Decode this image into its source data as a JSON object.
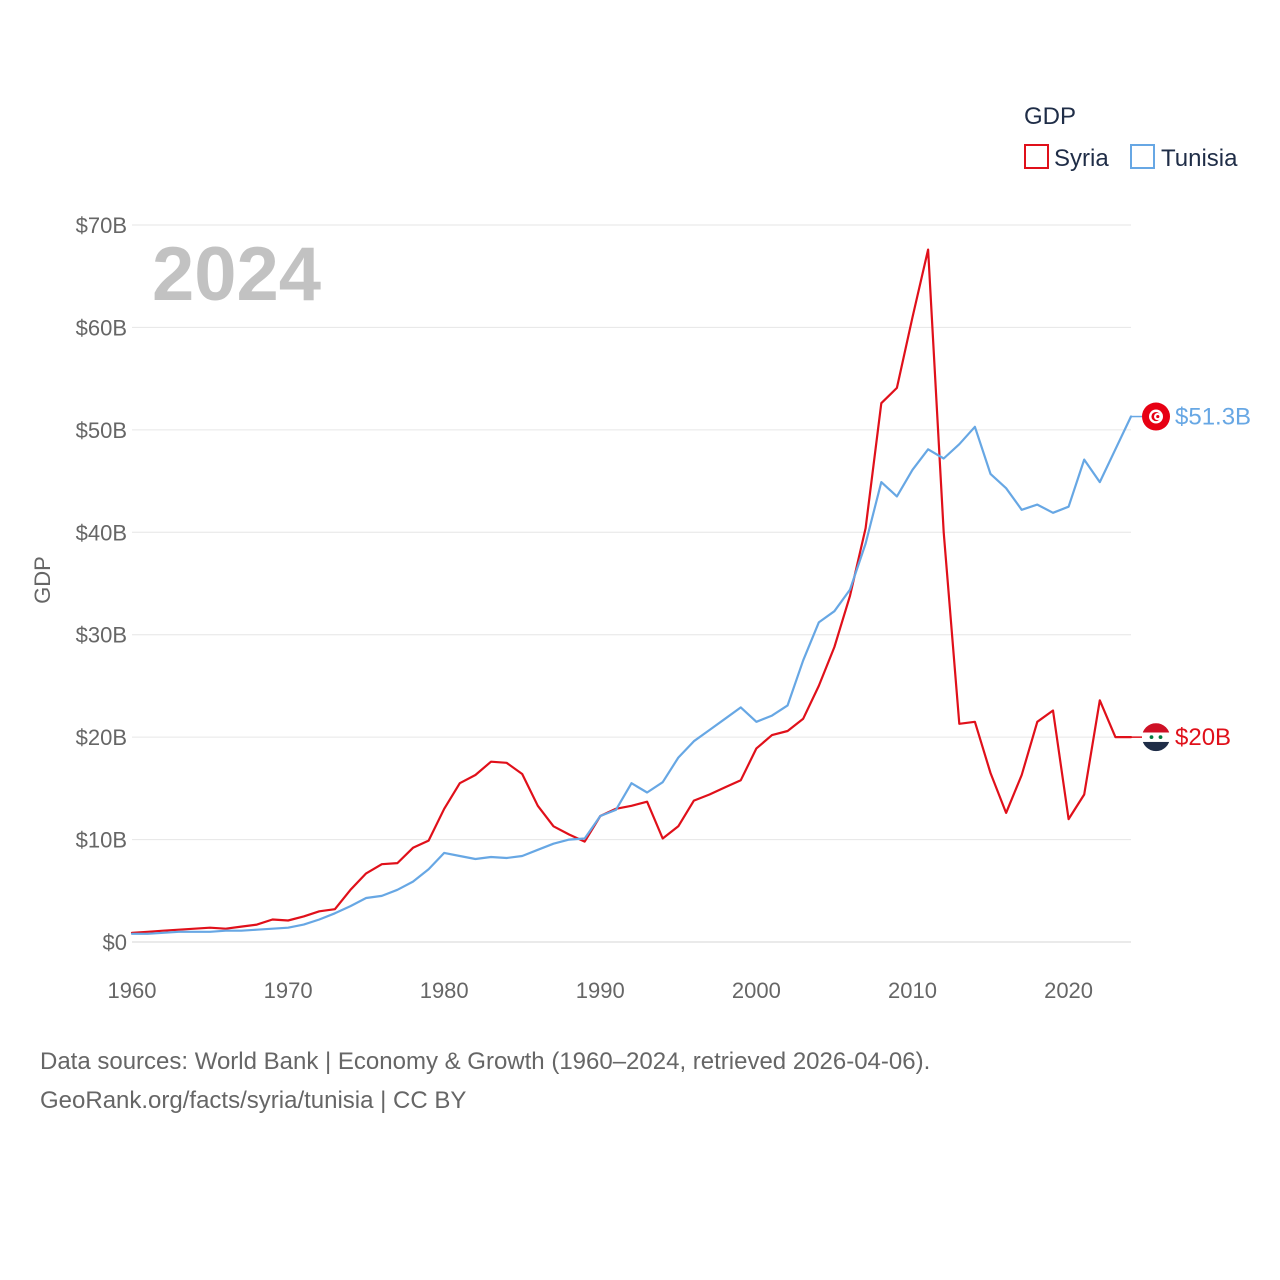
{
  "chart_data": {
    "type": "line",
    "year_label": "2024",
    "ylabel": "GDP",
    "ylim": [
      0,
      70
    ],
    "yticks": [
      {
        "value": 0,
        "label": "$0"
      },
      {
        "value": 10,
        "label": "$10B"
      },
      {
        "value": 20,
        "label": "$20B"
      },
      {
        "value": 30,
        "label": "$30B"
      },
      {
        "value": 40,
        "label": "$40B"
      },
      {
        "value": 50,
        "label": "$50B"
      },
      {
        "value": 60,
        "label": "$60B"
      },
      {
        "value": 70,
        "label": "$70B"
      }
    ],
    "xlim": [
      1960,
      2024
    ],
    "xticks": [
      {
        "value": 1960,
        "label": "1960"
      },
      {
        "value": 1970,
        "label": "1970"
      },
      {
        "value": 1980,
        "label": "1980"
      },
      {
        "value": 1990,
        "label": "1990"
      },
      {
        "value": 2000,
        "label": "2000"
      },
      {
        "value": 2010,
        "label": "2010"
      },
      {
        "value": 2020,
        "label": "2020"
      }
    ],
    "legend": {
      "title": "GDP",
      "position": "top-right"
    },
    "x_start": 1960,
    "series": [
      {
        "name": "Syria",
        "color": "#e0101a",
        "end_label": "$20B",
        "flag": "syria-flag",
        "values": [
          0.9,
          1.0,
          1.1,
          1.2,
          1.3,
          1.4,
          1.3,
          1.5,
          1.7,
          2.2,
          2.1,
          2.5,
          3.0,
          3.2,
          5.1,
          6.7,
          7.6,
          7.7,
          9.2,
          9.9,
          13.0,
          15.5,
          16.3,
          17.6,
          17.5,
          16.4,
          13.3,
          11.3,
          10.5,
          9.8,
          12.3,
          13.0,
          13.3,
          13.7,
          10.1,
          11.3,
          13.8,
          14.4,
          15.1,
          15.8,
          18.9,
          20.2,
          20.6,
          21.8,
          25.0,
          28.8,
          33.8,
          40.4,
          52.6,
          54.1,
          61.0,
          67.6,
          40.0,
          21.3,
          21.5,
          16.5,
          12.6,
          16.3,
          21.5,
          22.6,
          12.0,
          14.4,
          23.6,
          20.0,
          20.0
        ]
      },
      {
        "name": "Tunisia",
        "color": "#67a7e4",
        "end_label": "$51.3B",
        "flag": "tunisia-flag",
        "values": [
          0.8,
          0.8,
          0.9,
          1.0,
          1.0,
          1.0,
          1.1,
          1.1,
          1.2,
          1.3,
          1.4,
          1.7,
          2.2,
          2.8,
          3.5,
          4.3,
          4.5,
          5.1,
          5.9,
          7.1,
          8.7,
          8.4,
          8.1,
          8.3,
          8.2,
          8.4,
          9.0,
          9.6,
          10.0,
          10.1,
          12.3,
          12.9,
          15.5,
          14.6,
          15.6,
          18.0,
          19.6,
          20.7,
          21.8,
          22.9,
          21.5,
          22.1,
          23.1,
          27.5,
          31.2,
          32.3,
          34.4,
          38.9,
          44.9,
          43.5,
          46.1,
          48.1,
          47.2,
          48.6,
          50.3,
          45.7,
          44.3,
          42.2,
          42.7,
          41.9,
          42.5,
          47.1,
          44.9,
          48.1,
          51.3
        ]
      }
    ]
  },
  "footer": {
    "line1": "Data sources: World Bank | Economy & Growth (1960–2024, retrieved 2026-04-06).",
    "line2": "GeoRank.org/facts/syria/tunisia | CC BY"
  }
}
